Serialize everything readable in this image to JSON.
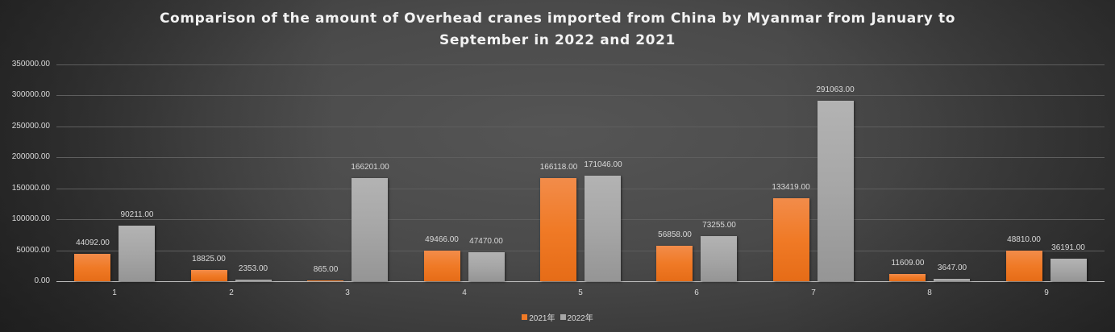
{
  "title": {
    "line1": "Comparison of the amount of Overhead cranes imported from China by Myanmar from January to",
    "line2": "September in 2022 and 2021"
  },
  "colors": {
    "series_2021": "#f07a26",
    "series_2022": "#a6a6a6",
    "background": "#4a4a4a"
  },
  "legend": [
    {
      "label": "2021年",
      "color": "#f07a26"
    },
    {
      "label": "2022年",
      "color": "#a6a6a6"
    }
  ],
  "chart_data": {
    "type": "bar",
    "title": "Comparison of the amount of Overhead cranes imported from China by Myanmar from January to September in 2022 and 2021",
    "xlabel": "",
    "ylabel": "",
    "categories": [
      "1",
      "2",
      "3",
      "4",
      "5",
      "6",
      "7",
      "8",
      "9"
    ],
    "series": [
      {
        "name": "2021年",
        "values": [
          44092.0,
          18825.0,
          865.0,
          49466.0,
          166118.0,
          56858.0,
          133419.0,
          11609.0,
          48810.0
        ]
      },
      {
        "name": "2022年",
        "values": [
          90211.0,
          2353.0,
          166201.0,
          47470.0,
          171046.0,
          73255.0,
          291063.0,
          3647.0,
          36191.0
        ]
      }
    ],
    "data_labels": [
      [
        "44092.00",
        "18825.00",
        "865.00",
        "49466.00",
        "166118.00",
        "56858.00",
        "133419.00",
        "11609.00",
        "48810.00"
      ],
      [
        "90211.00",
        "2353.00",
        "166201.00",
        "47470.00",
        "171046.00",
        "73255.00",
        "291063.00",
        "3647.00",
        "36191.00"
      ]
    ],
    "yticks": [
      "0.00",
      "50000.00",
      "100000.00",
      "150000.00",
      "200000.00",
      "250000.00",
      "300000.00",
      "350000.00"
    ],
    "ylim": [
      0,
      350000
    ],
    "grid": true,
    "legend_position": "bottom"
  }
}
